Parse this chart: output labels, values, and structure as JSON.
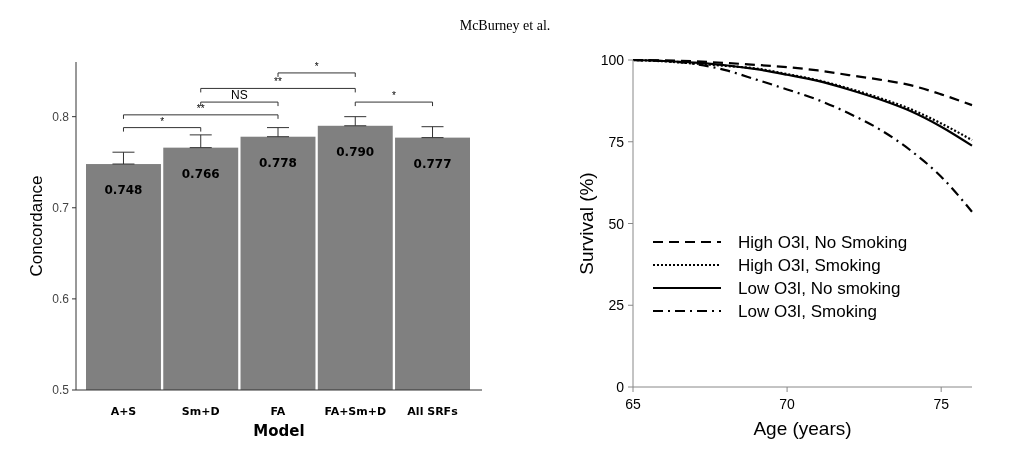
{
  "chart_data": [
    {
      "type": "bar",
      "annotations": [
        "McBurney et al.",
        "*",
        "**",
        "NS",
        "**",
        "*",
        "*"
      ],
      "xlabel": "Model",
      "ylabel": "Concordance",
      "categories": [
        "A+S",
        "Sm+D",
        "FA",
        "FA+Sm+D",
        "All SRFs"
      ],
      "values": [
        0.748,
        0.766,
        0.778,
        0.79,
        0.777
      ],
      "errors": [
        [
          0.748,
          0.761
        ],
        [
          0.766,
          0.78
        ],
        [
          0.778,
          0.788
        ],
        [
          0.79,
          0.8
        ],
        [
          0.777,
          0.789
        ]
      ],
      "value_labels": [
        "0.748",
        "0.766",
        "0.778",
        "0.790",
        "0.777"
      ],
      "color": "#808080",
      "ylim": [
        0.5,
        0.86
      ],
      "yticks": [
        0.5,
        0.6,
        0.7,
        0.8
      ],
      "grid": false
    },
    {
      "type": "line",
      "xlabel": "Age (years)",
      "ylabel": "Survival (%)",
      "xlim": [
        65,
        76
      ],
      "xticks": [
        65,
        70,
        75
      ],
      "ylim": [
        0,
        100
      ],
      "yticks": [
        0,
        25,
        50,
        75,
        100
      ],
      "grid": false,
      "legend": "left",
      "marker": "none",
      "series": [
        {
          "name": "High O3I, No Smoking",
          "color": "#000000",
          "line_style": "dashed",
          "x": [
            65,
            66,
            67,
            68,
            69,
            70,
            71,
            72,
            73,
            74,
            75,
            76
          ],
          "values": [
            100,
            99.9,
            99.6,
            99.1,
            98.5,
            97.8,
            96.8,
            95.4,
            94,
            92.3,
            89.5,
            86.2
          ]
        },
        {
          "name": "High O3I, Smoking",
          "color": "#000000",
          "line_style": "dotted",
          "x": [
            65,
            66,
            67,
            68,
            69,
            70,
            71,
            72,
            73,
            74,
            75,
            76
          ],
          "values": [
            100,
            99.6,
            98.9,
            98.2,
            97.4,
            95.7,
            93.8,
            91.3,
            88.4,
            85,
            80.6,
            75.5
          ]
        },
        {
          "name": "Low O3I, No smoking",
          "color": "#000000",
          "line_style": "solid",
          "x": [
            65,
            66,
            67,
            68,
            69,
            70,
            71,
            72,
            73,
            74,
            75,
            76
          ],
          "values": [
            100,
            99.7,
            99.2,
            98.4,
            97.2,
            95.5,
            93.6,
            91,
            88,
            84.4,
            79.6,
            73.8
          ]
        },
        {
          "name": "Low O3I, Smoking",
          "color": "#000000",
          "line_style": "dashdot",
          "x": [
            65,
            66,
            67,
            68,
            69,
            70,
            71,
            72,
            73,
            74,
            75,
            76
          ],
          "values": [
            100,
            99.7,
            98.8,
            96.9,
            94,
            91,
            87.8,
            83.7,
            78.8,
            72.4,
            64.3,
            53.6
          ]
        }
      ]
    }
  ]
}
